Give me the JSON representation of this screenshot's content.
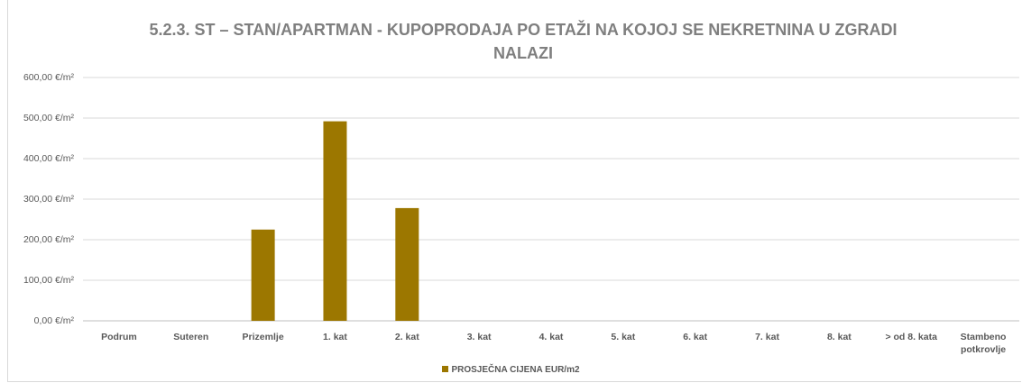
{
  "chart_data": {
    "type": "bar",
    "title": "5.2.3. ST – STAN/APARTMAN - KUPOPRODAJA PO ETAŽI NA KOJOJ SE NEKRETNINA U ZGRADI NALAZI",
    "categories": [
      "Podrum",
      "Suteren",
      "Prizemlje",
      "1. kat",
      "2. kat",
      "3. kat",
      "4. kat",
      "5. kat",
      "6. kat",
      "7. kat",
      "8. kat",
      "> od 8. kata",
      "Stambeno potkrovlje"
    ],
    "series": [
      {
        "name": "PROSJEČNA CIJENA EUR/m2",
        "color": "#9c7700",
        "values": [
          null,
          null,
          225,
          492,
          278,
          null,
          null,
          null,
          null,
          null,
          null,
          null,
          null
        ]
      }
    ],
    "ylim": [
      0,
      600
    ],
    "yticks": [
      {
        "value": 0,
        "label": "0,00 €/m²"
      },
      {
        "value": 100,
        "label": "100,00 €/m²"
      },
      {
        "value": 200,
        "label": "200,00 €/m²"
      },
      {
        "value": 300,
        "label": "300,00 €/m²"
      },
      {
        "value": 400,
        "label": "400,00 €/m²"
      },
      {
        "value": 500,
        "label": "500,00 €/m²"
      },
      {
        "value": 600,
        "label": "600,00 €/m²"
      }
    ],
    "grid": true,
    "legend": "bottom"
  }
}
